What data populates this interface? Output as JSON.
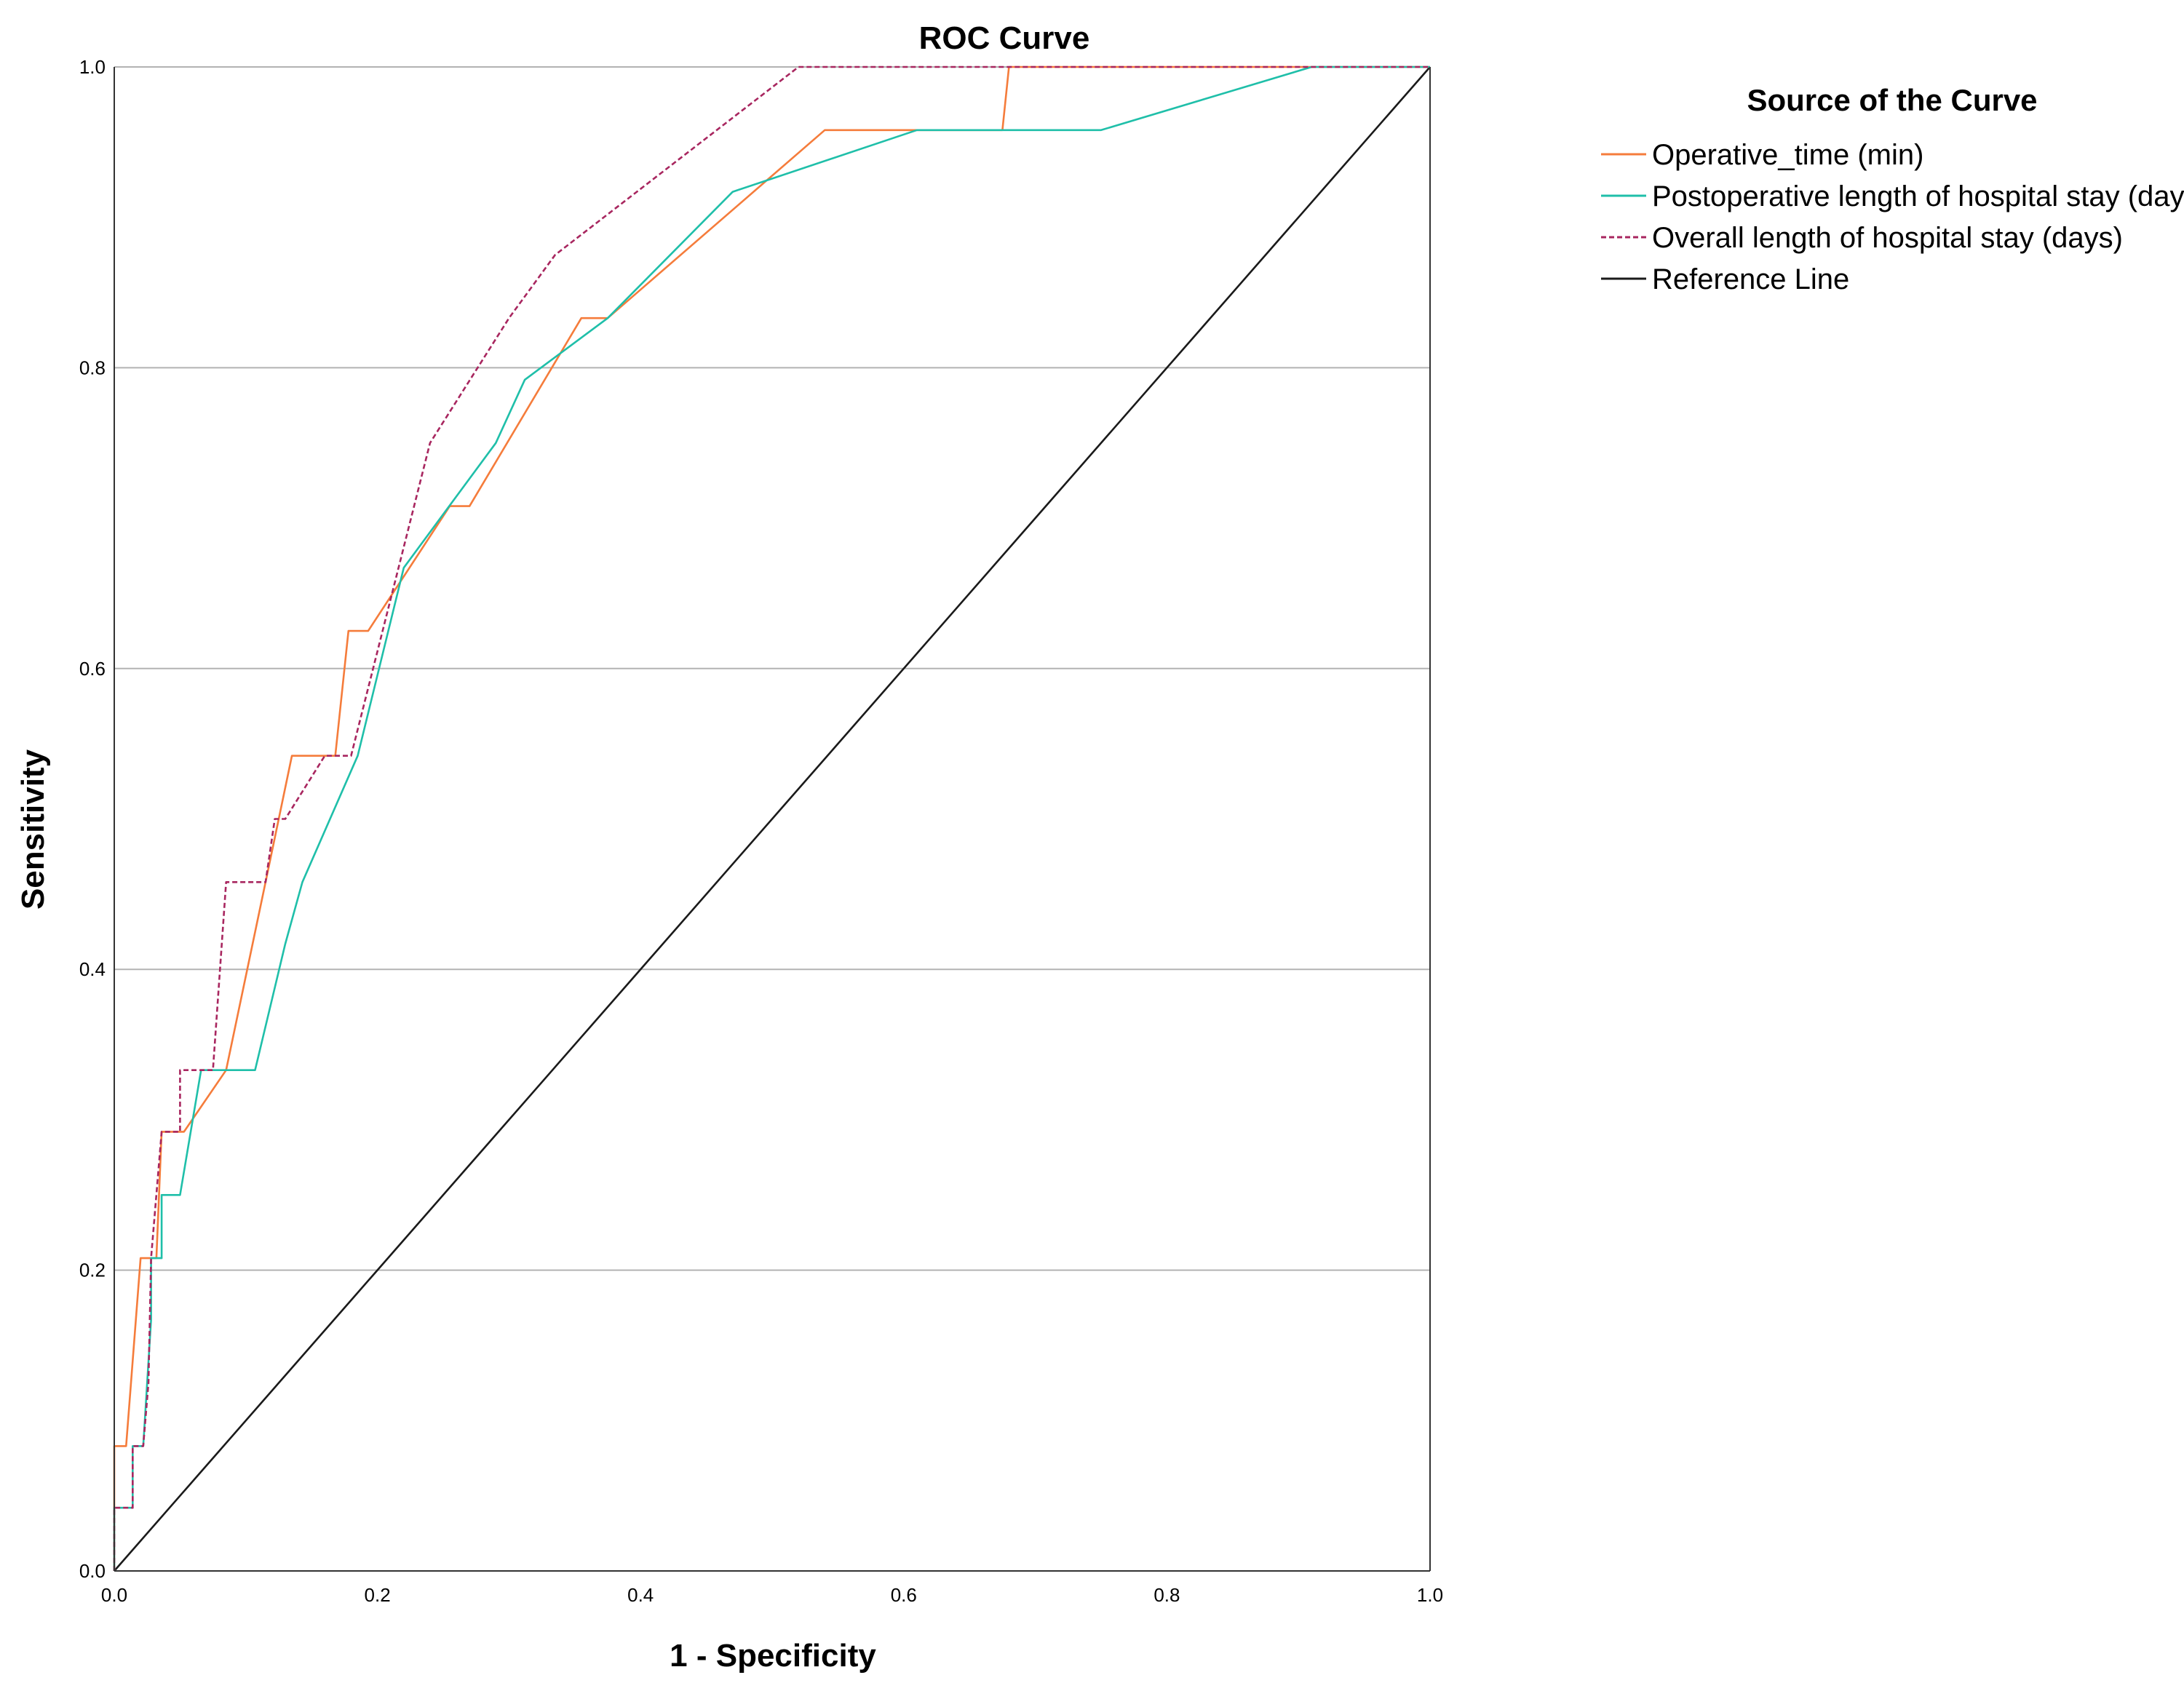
{
  "chart_data": {
    "type": "line",
    "title": "ROC Curve",
    "xlabel": "1 - Specificity",
    "ylabel": "Sensitivity",
    "xlim": [
      0,
      1
    ],
    "ylim": [
      0,
      1
    ],
    "x_ticks": [
      "0.0",
      "0.2",
      "0.4",
      "0.6",
      "0.8",
      "1.0"
    ],
    "y_ticks": [
      "0.0",
      "0.2",
      "0.4",
      "0.6",
      "0.8",
      "1.0"
    ],
    "grid": "horizontal",
    "legend_title": "Source of the Curve",
    "legend_position": "right",
    "series": [
      {
        "name": "Operative_time (min)",
        "color": "#f57c3b",
        "dash": "solid",
        "points": [
          [
            0,
            0
          ],
          [
            0,
            0.083
          ],
          [
            0.009,
            0.083
          ],
          [
            0.02,
            0.208
          ],
          [
            0.032,
            0.208
          ],
          [
            0.036,
            0.292
          ],
          [
            0.053,
            0.292
          ],
          [
            0.085,
            0.333
          ],
          [
            0.115,
            0.458
          ],
          [
            0.135,
            0.542
          ],
          [
            0.168,
            0.542
          ],
          [
            0.178,
            0.625
          ],
          [
            0.193,
            0.625
          ],
          [
            0.255,
            0.708
          ],
          [
            0.27,
            0.708
          ],
          [
            0.355,
            0.833
          ],
          [
            0.375,
            0.833
          ],
          [
            0.54,
            0.958
          ],
          [
            0.675,
            0.958
          ],
          [
            0.68,
            1.0
          ],
          [
            1.0,
            1.0
          ]
        ]
      },
      {
        "name": "Postoperative length of hospital stay (days)",
        "color": "#1fbfa9",
        "dash": "solid",
        "points": [
          [
            0,
            0
          ],
          [
            0,
            0.042
          ],
          [
            0.014,
            0.042
          ],
          [
            0.014,
            0.083
          ],
          [
            0.022,
            0.083
          ],
          [
            0.028,
            0.167
          ],
          [
            0.028,
            0.208
          ],
          [
            0.036,
            0.208
          ],
          [
            0.036,
            0.25
          ],
          [
            0.05,
            0.25
          ],
          [
            0.066,
            0.333
          ],
          [
            0.107,
            0.333
          ],
          [
            0.13,
            0.417
          ],
          [
            0.143,
            0.458
          ],
          [
            0.185,
            0.542
          ],
          [
            0.22,
            0.667
          ],
          [
            0.29,
            0.75
          ],
          [
            0.312,
            0.792
          ],
          [
            0.375,
            0.833
          ],
          [
            0.47,
            0.917
          ],
          [
            0.61,
            0.958
          ],
          [
            0.75,
            0.958
          ],
          [
            0.91,
            1.0
          ],
          [
            1.0,
            1.0
          ]
        ]
      },
      {
        "name": "Overall length of hospital stay (days)",
        "color": "#a8265f",
        "dash": "dashed",
        "points": [
          [
            0,
            0
          ],
          [
            0,
            0.042
          ],
          [
            0.014,
            0.042
          ],
          [
            0.014,
            0.083
          ],
          [
            0.022,
            0.083
          ],
          [
            0.026,
            0.125
          ],
          [
            0.028,
            0.208
          ],
          [
            0.036,
            0.292
          ],
          [
            0.05,
            0.292
          ],
          [
            0.05,
            0.333
          ],
          [
            0.075,
            0.333
          ],
          [
            0.085,
            0.458
          ],
          [
            0.115,
            0.458
          ],
          [
            0.122,
            0.5
          ],
          [
            0.13,
            0.5
          ],
          [
            0.16,
            0.542
          ],
          [
            0.18,
            0.542
          ],
          [
            0.24,
            0.75
          ],
          [
            0.3,
            0.833
          ],
          [
            0.335,
            0.875
          ],
          [
            0.52,
            1.0
          ],
          [
            1.0,
            1.0
          ]
        ]
      },
      {
        "name": "Reference Line",
        "color": "#1a1a1a",
        "dash": "solid",
        "points": [
          [
            0,
            0
          ],
          [
            1,
            1
          ]
        ]
      }
    ]
  }
}
